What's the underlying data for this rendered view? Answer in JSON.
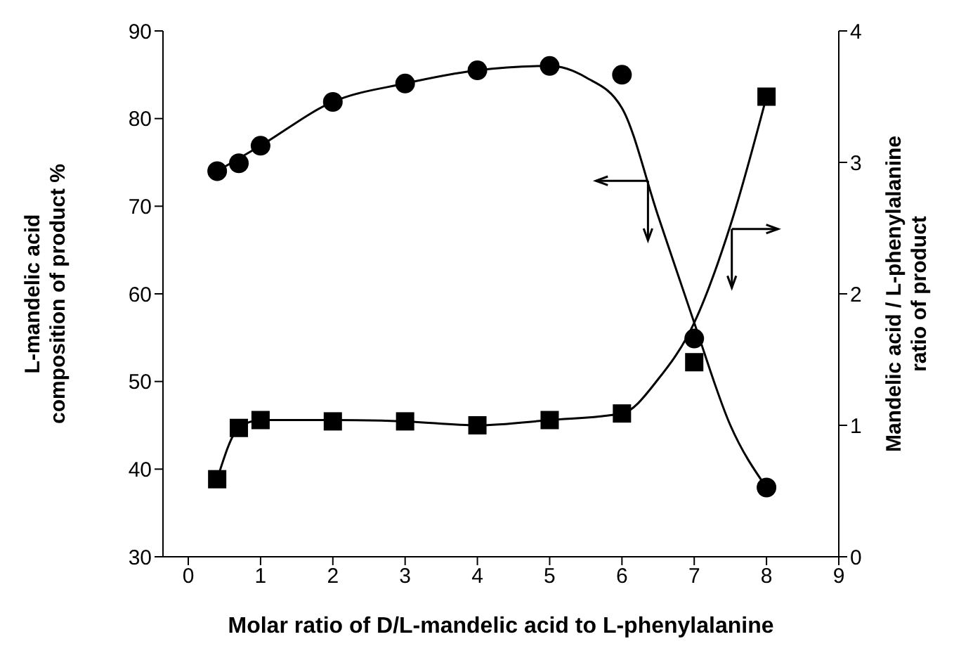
{
  "chart_data": {
    "type": "scatter",
    "xlabel": "Molar ratio of D/L-mandelic acid to L-phenylalanine",
    "ylabel": "L-mandelic acid composition of product %",
    "y2label": "Mandelic acid / L-phenylalanine ratio of product",
    "x": [
      0.4,
      0.7,
      1,
      2,
      3,
      4,
      5,
      6,
      7,
      8
    ],
    "series": [
      {
        "marker": "circle",
        "color": "#000000",
        "values": [
          74,
          74.9,
          76.9,
          81.9,
          84,
          85.5,
          86,
          85,
          54.9,
          37.9
        ]
      },
      {
        "marker": "square",
        "color": "#000000",
        "axis": "y2",
        "values": [
          0.59,
          0.98,
          1.04,
          1.03,
          1.03,
          1.0,
          1.04,
          1.09,
          1.48,
          3.5
        ]
      },
      {
        "type": "line",
        "marker": "none",
        "color": "#000000",
        "x": [
          0.4,
          1,
          2,
          3,
          4,
          5,
          5.5,
          6,
          6.5,
          7,
          7.5,
          8
        ],
        "values": [
          74,
          76.9,
          81.9,
          84,
          85.5,
          86,
          84.7,
          81.2,
          68.9,
          56.7,
          45,
          37.9
        ]
      },
      {
        "type": "line",
        "marker": "none",
        "color": "#000000",
        "axis": "y2",
        "x": [
          0.4,
          0.7,
          1,
          2,
          3,
          4,
          5,
          6,
          6.5,
          7,
          7.5,
          8
        ],
        "values": [
          0.59,
          0.98,
          1.04,
          1.04,
          1.03,
          1.0,
          1.04,
          1.09,
          1.35,
          1.78,
          2.52,
          3.5
        ]
      }
    ],
    "xlim": [
      -0.35,
      9
    ],
    "xticks": [
      0,
      1,
      2,
      3,
      4,
      5,
      6,
      7,
      8,
      9
    ],
    "ylim": [
      30,
      90
    ],
    "yticks": [
      30,
      40,
      50,
      60,
      70,
      80,
      90
    ],
    "y2lim": [
      0,
      4
    ],
    "y2ticks": [
      0,
      1,
      2,
      3,
      4
    ],
    "grid": false,
    "legend": false
  }
}
